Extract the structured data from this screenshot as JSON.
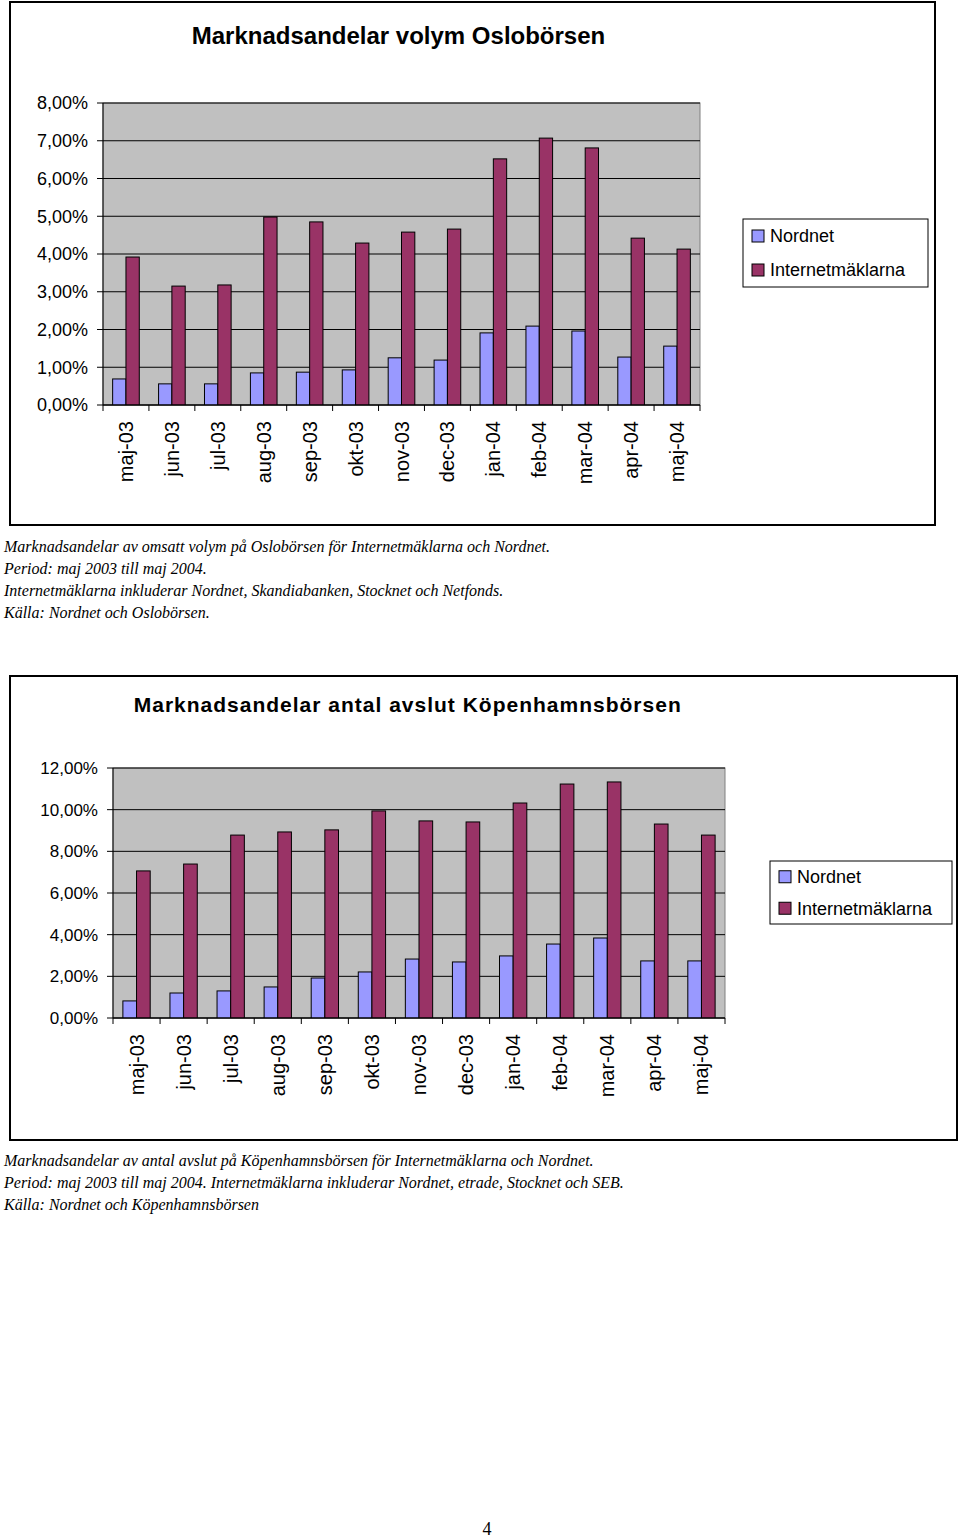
{
  "chart_data": [
    {
      "type": "bar",
      "title": "Marknadsandelar volym Oslobörsen",
      "categories": [
        "maj-03",
        "jun-03",
        "jul-03",
        "aug-03",
        "sep-03",
        "okt-03",
        "nov-03",
        "dec-03",
        "jan-04",
        "feb-04",
        "mar-04",
        "apr-04",
        "maj-04"
      ],
      "series": [
        {
          "name": "Nordnet",
          "color": "#9999ff",
          "values": [
            0.69,
            0.56,
            0.56,
            0.85,
            0.87,
            0.93,
            1.25,
            1.19,
            1.91,
            2.09,
            1.96,
            1.27,
            1.56
          ]
        },
        {
          "name": "Internetmäklarna",
          "color": "#993366",
          "values": [
            3.92,
            3.15,
            3.18,
            4.98,
            4.85,
            4.29,
            4.58,
            4.66,
            6.52,
            7.07,
            6.81,
            4.42,
            4.13
          ]
        }
      ],
      "ylim": [
        0,
        8
      ],
      "yticks": [
        {
          "value": 0,
          "label": "0,00%"
        },
        {
          "value": 1,
          "label": "1,00%"
        },
        {
          "value": 2,
          "label": "2,00%"
        },
        {
          "value": 3,
          "label": "3,00%"
        },
        {
          "value": 4,
          "label": "4,00%"
        },
        {
          "value": 5,
          "label": "5,00%"
        },
        {
          "value": 6,
          "label": "6,00%"
        },
        {
          "value": 7,
          "label": "7,00%"
        },
        {
          "value": 8,
          "label": "8,00%"
        }
      ],
      "grid": true,
      "legend": "right",
      "caption": [
        "Marknadsandelar av omsatt volym på Oslobörsen för Internetmäklarna och Nordnet.",
        "Period: maj 2003 till maj 2004.",
        "Internetmäklarna inkluderar Nordnet, Skandiabanken, Stocknet och Netfonds.",
        "Källa: Nordnet och Oslobörsen."
      ]
    },
    {
      "type": "bar",
      "title": "Marknadsandelar antal avslut Köpenhamnsbörsen",
      "categories": [
        "maj-03",
        "jun-03",
        "jul-03",
        "aug-03",
        "sep-03",
        "okt-03",
        "nov-03",
        "dec-03",
        "jan-04",
        "feb-04",
        "mar-04",
        "apr-04",
        "maj-04"
      ],
      "series": [
        {
          "name": "Nordnet",
          "color": "#9999ff",
          "values": [
            0.82,
            1.2,
            1.3,
            1.49,
            1.92,
            2.21,
            2.83,
            2.69,
            2.98,
            3.55,
            3.84,
            2.74,
            2.74
          ]
        },
        {
          "name": "Internetmäklarna",
          "color": "#993366",
          "values": [
            7.06,
            7.39,
            8.78,
            8.93,
            9.03,
            9.94,
            9.46,
            9.41,
            10.32,
            11.23,
            11.33,
            9.31,
            8.78
          ]
        }
      ],
      "ylim": [
        0,
        12
      ],
      "yticks": [
        {
          "value": 0,
          "label": "0,00%"
        },
        {
          "value": 2,
          "label": "2,00%"
        },
        {
          "value": 4,
          "label": "4,00%"
        },
        {
          "value": 6,
          "label": "6,00%"
        },
        {
          "value": 8,
          "label": "8,00%"
        },
        {
          "value": 10,
          "label": "10,00%"
        },
        {
          "value": 12,
          "label": "12,00%"
        }
      ],
      "grid": true,
      "legend": "right",
      "caption": [
        "Marknadsandelar av antal avslut på Köpenhamnsbörsen för Internetmäklarna och Nordnet.",
        "Period: maj 2003 till maj 2004. Internetmäklarna inkluderar Nordnet, etrade, Stocknet och SEB.",
        "Källa: Nordnet och Köpenhamnsbörsen"
      ]
    }
  ],
  "page_number": "4"
}
